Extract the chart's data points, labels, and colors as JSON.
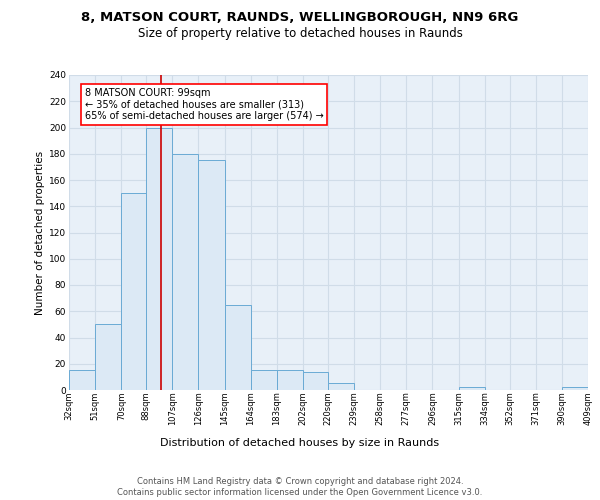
{
  "title1": "8, MATSON COURT, RAUNDS, WELLINGBOROUGH, NN9 6RG",
  "title2": "Size of property relative to detached houses in Raunds",
  "xlabel": "Distribution of detached houses by size in Raunds",
  "ylabel": "Number of detached properties",
  "bin_edges": [
    32,
    51,
    70,
    88,
    107,
    126,
    145,
    164,
    183,
    202,
    220,
    239,
    258,
    277,
    296,
    315,
    334,
    352,
    371,
    390,
    409
  ],
  "all_heights": [
    15,
    50,
    150,
    200,
    180,
    175,
    65,
    15,
    15,
    14,
    5,
    0,
    0,
    0,
    0,
    2,
    0,
    0,
    0,
    2
  ],
  "bar_color": "#dce9f5",
  "bar_edge_color": "#6aaad4",
  "red_line_x": 99,
  "annotation_line1": "8 MATSON COURT: 99sqm",
  "annotation_line2": "← 35% of detached houses are smaller (313)",
  "annotation_line3": "65% of semi-detached houses are larger (574) →",
  "footer": "Contains HM Land Registry data © Crown copyright and database right 2024.\nContains public sector information licensed under the Open Government Licence v3.0.",
  "ylim": [
    0,
    240
  ],
  "yticks": [
    0,
    20,
    40,
    60,
    80,
    100,
    120,
    140,
    160,
    180,
    200,
    220,
    240
  ],
  "bg_color": "#e8f0f8",
  "grid_color": "#d0dce8",
  "tick_labels": [
    "32sqm",
    "51sqm",
    "70sqm",
    "88sqm",
    "107sqm",
    "126sqm",
    "145sqm",
    "164sqm",
    "183sqm",
    "202sqm",
    "220sqm",
    "239sqm",
    "258sqm",
    "277sqm",
    "296sqm",
    "315sqm",
    "334sqm",
    "352sqm",
    "371sqm",
    "390sqm",
    "409sqm"
  ],
  "title1_fontsize": 9.5,
  "title2_fontsize": 8.5,
  "ylabel_fontsize": 7.5,
  "xlabel_fontsize": 8,
  "tick_fontsize": 6,
  "footer_fontsize": 6,
  "ann_fontsize": 7
}
